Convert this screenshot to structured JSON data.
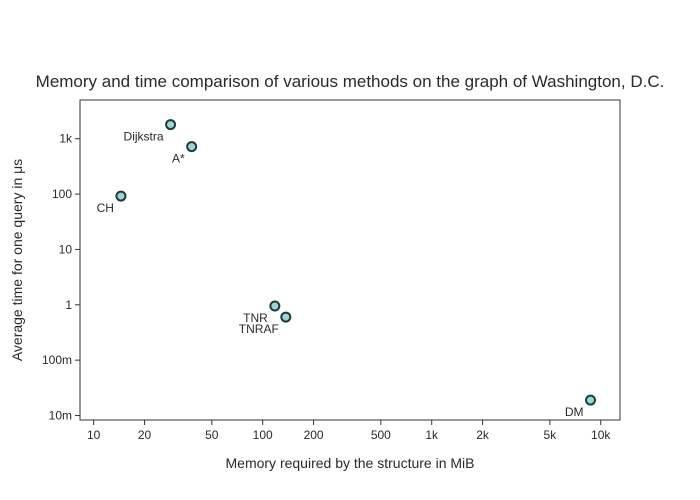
{
  "chart_data": {
    "type": "scatter",
    "title": "Memory and time comparison of various methods on the graph of Washington, D.C.",
    "xlabel": "Memory required by the structure in MiB",
    "ylabel": "Average time for one query in μs",
    "x_scale": "log",
    "y_scale": "log",
    "xlim": [
      8.3,
      13000
    ],
    "ylim": [
      0.0083,
      5000
    ],
    "grid": false,
    "legend": "none",
    "x_ticks": [
      {
        "value": 10,
        "label": "10"
      },
      {
        "value": 20,
        "label": "20"
      },
      {
        "value": 50,
        "label": "50"
      },
      {
        "value": 100,
        "label": "100"
      },
      {
        "value": 200,
        "label": "200"
      },
      {
        "value": 500,
        "label": "500"
      },
      {
        "value": 1000,
        "label": "1k"
      },
      {
        "value": 2000,
        "label": "2k"
      },
      {
        "value": 5000,
        "label": "5k"
      },
      {
        "value": 10000,
        "label": "10k"
      }
    ],
    "y_ticks": [
      {
        "value": 0.01,
        "label": "10m"
      },
      {
        "value": 0.1,
        "label": "100m"
      },
      {
        "value": 1,
        "label": "1"
      },
      {
        "value": 10,
        "label": "10"
      },
      {
        "value": 100,
        "label": "100"
      },
      {
        "value": 1000,
        "label": "1k"
      }
    ],
    "points": [
      {
        "label": "Dijkstra",
        "x": 28.5,
        "y": 1800,
        "label_pos": "bottom-left"
      },
      {
        "label": "A*",
        "x": 38,
        "y": 720,
        "label_pos": "bottom-left"
      },
      {
        "label": "CH",
        "x": 14.5,
        "y": 92,
        "label_pos": "bottom-left"
      },
      {
        "label": "TNR",
        "x": 118,
        "y": 0.95,
        "label_pos": "bottom-left"
      },
      {
        "label": "TNRAF",
        "x": 137,
        "y": 0.6,
        "label_pos": "bottom-left"
      },
      {
        "label": "DM",
        "x": 8700,
        "y": 0.019,
        "label_pos": "bottom-left"
      }
    ],
    "marker_color": "#9ad6d6",
    "marker_edge_color": "#1f3b3b"
  }
}
